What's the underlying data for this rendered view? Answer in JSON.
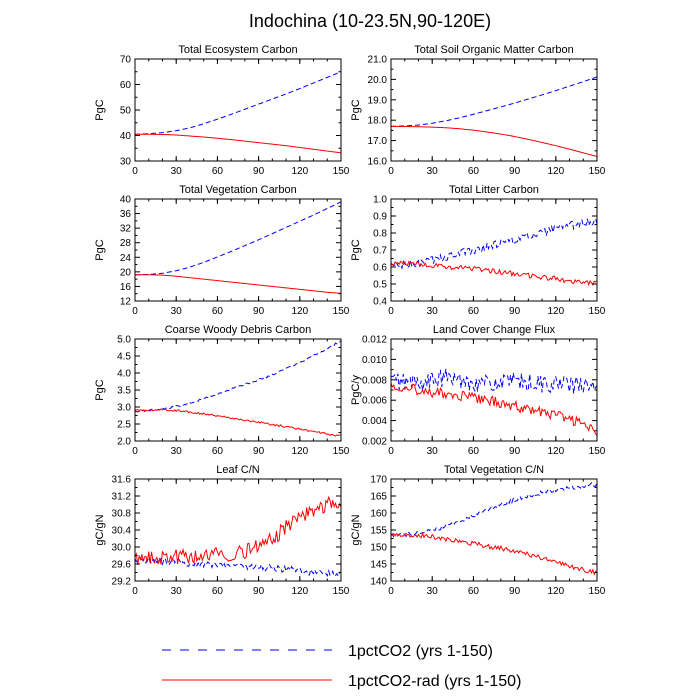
{
  "title": "Indochina (10-23.5N,90-120E)",
  "legend": [
    {
      "label": "1pctCO2 (yrs 1-150)",
      "color": "#0000ff",
      "dash": "dashed"
    },
    {
      "label": "1pctCO2-rad (yrs 1-150)",
      "color": "#ff0000",
      "dash": "solid"
    }
  ],
  "chart_data": [
    {
      "type": "line",
      "title": "Total Ecosystem Carbon",
      "ylabel": "PgC",
      "xlim": [
        0,
        150
      ],
      "ylim": [
        30,
        70
      ],
      "xticks": [
        0,
        30,
        60,
        90,
        120,
        150
      ],
      "yticks": [
        30,
        40,
        50,
        60,
        70
      ],
      "yticklabels": [
        "30",
        "40",
        "50",
        "60",
        "70"
      ],
      "series": [
        {
          "name": "1pctCO2 (yrs 1-150)",
          "x": [
            0,
            10,
            20,
            30,
            40,
            50,
            60,
            70,
            80,
            90,
            100,
            110,
            120,
            130,
            140,
            150
          ],
          "y": [
            40.5,
            40.7,
            41.1,
            41.9,
            43.0,
            44.6,
            46.4,
            48.3,
            50.3,
            52.3,
            54.3,
            56.3,
            58.4,
            60.6,
            62.8,
            65.0
          ],
          "noise": 0
        },
        {
          "name": "1pctCO2-rad (yrs 1-150)",
          "x": [
            0,
            10,
            20,
            30,
            40,
            50,
            60,
            70,
            80,
            90,
            100,
            110,
            120,
            130,
            140,
            150
          ],
          "y": [
            40.5,
            40.5,
            40.4,
            40.2,
            39.8,
            39.4,
            38.9,
            38.4,
            37.8,
            37.2,
            36.6,
            36.0,
            35.3,
            34.6,
            33.9,
            33.2
          ],
          "noise": 0
        }
      ]
    },
    {
      "type": "line",
      "title": "Total Soil Organic Matter Carbon",
      "ylabel": "PgC",
      "xlim": [
        0,
        150
      ],
      "ylim": [
        16,
        21
      ],
      "xticks": [
        0,
        30,
        60,
        90,
        120,
        150
      ],
      "yticks": [
        16,
        17,
        18,
        19,
        20,
        21
      ],
      "yticklabels": [
        "16.0",
        "17.0",
        "18.0",
        "19.0",
        "20.0",
        "21.0"
      ],
      "series": [
        {
          "name": "1pctCO2 (yrs 1-150)",
          "x": [
            0,
            10,
            20,
            30,
            40,
            50,
            60,
            70,
            80,
            90,
            100,
            110,
            120,
            130,
            140,
            150
          ],
          "y": [
            17.7,
            17.72,
            17.76,
            17.85,
            17.97,
            18.12,
            18.29,
            18.47,
            18.65,
            18.84,
            19.04,
            19.24,
            19.45,
            19.67,
            19.89,
            20.12
          ],
          "noise": 0
        },
        {
          "name": "1pctCO2-rad (yrs 1-150)",
          "x": [
            0,
            10,
            20,
            30,
            40,
            50,
            60,
            70,
            80,
            90,
            100,
            110,
            120,
            130,
            140,
            150
          ],
          "y": [
            17.7,
            17.69,
            17.68,
            17.66,
            17.63,
            17.58,
            17.51,
            17.42,
            17.32,
            17.2,
            17.06,
            16.91,
            16.75,
            16.58,
            16.4,
            16.22
          ],
          "noise": 0
        }
      ]
    },
    {
      "type": "line",
      "title": "Total Vegetation Carbon",
      "ylabel": "PgC",
      "xlim": [
        0,
        150
      ],
      "ylim": [
        12,
        40
      ],
      "xticks": [
        0,
        30,
        60,
        90,
        120,
        150
      ],
      "yticks": [
        12,
        16,
        20,
        24,
        28,
        32,
        36,
        40
      ],
      "yticklabels": [
        "12",
        "16",
        "20",
        "24",
        "28",
        "32",
        "36",
        "40"
      ],
      "series": [
        {
          "name": "1pctCO2 (yrs 1-150)",
          "x": [
            0,
            10,
            20,
            30,
            40,
            50,
            60,
            70,
            80,
            90,
            100,
            110,
            120,
            130,
            140,
            150
          ],
          "y": [
            19.2,
            19.3,
            19.6,
            20.3,
            21.3,
            22.6,
            24.1,
            25.6,
            27.2,
            28.8,
            30.5,
            32.2,
            33.9,
            35.6,
            37.4,
            39.2
          ],
          "noise": 0
        },
        {
          "name": "1pctCO2-rad (yrs 1-150)",
          "x": [
            0,
            10,
            20,
            30,
            40,
            50,
            60,
            70,
            80,
            90,
            100,
            110,
            120,
            130,
            140,
            150
          ],
          "y": [
            19.2,
            19.2,
            19.1,
            18.8,
            18.4,
            18.0,
            17.6,
            17.2,
            16.8,
            16.4,
            16.0,
            15.6,
            15.2,
            14.8,
            14.4,
            14.1
          ],
          "noise": 0
        }
      ]
    },
    {
      "type": "line",
      "title": "Total Litter Carbon",
      "ylabel": "PgC",
      "xlim": [
        0,
        150
      ],
      "ylim": [
        0.4,
        1.0
      ],
      "xticks": [
        0,
        30,
        60,
        90,
        120,
        150
      ],
      "yticks": [
        0.4,
        0.5,
        0.6,
        0.7,
        0.8,
        0.9,
        1.0
      ],
      "yticklabels": [
        "0.4",
        "0.5",
        "0.6",
        "0.7",
        "0.8",
        "0.9",
        "1.0"
      ],
      "series": [
        {
          "name": "1pctCO2 (yrs 1-150)",
          "x": [
            0,
            10,
            20,
            30,
            40,
            50,
            60,
            70,
            80,
            90,
            100,
            110,
            120,
            130,
            140,
            150
          ],
          "y": [
            0.61,
            0.61,
            0.62,
            0.64,
            0.66,
            0.68,
            0.7,
            0.72,
            0.74,
            0.76,
            0.78,
            0.8,
            0.82,
            0.84,
            0.86,
            0.86
          ],
          "noise": 0.025
        },
        {
          "name": "1pctCO2-rad (yrs 1-150)",
          "x": [
            0,
            10,
            20,
            30,
            40,
            50,
            60,
            70,
            80,
            90,
            100,
            110,
            120,
            130,
            140,
            150
          ],
          "y": [
            0.62,
            0.62,
            0.62,
            0.61,
            0.6,
            0.6,
            0.59,
            0.58,
            0.57,
            0.56,
            0.55,
            0.54,
            0.53,
            0.52,
            0.51,
            0.51
          ],
          "noise": 0.015
        }
      ]
    },
    {
      "type": "line",
      "title": "Coarse Woody Debris Carbon",
      "ylabel": "PgC",
      "xlim": [
        0,
        150
      ],
      "ylim": [
        2.0,
        5.0
      ],
      "xticks": [
        0,
        30,
        60,
        90,
        120,
        150
      ],
      "yticks": [
        2.0,
        2.5,
        3.0,
        3.5,
        4.0,
        4.5,
        5.0
      ],
      "yticklabels": [
        "2.0",
        "2.5",
        "3.0",
        "3.5",
        "4.0",
        "4.5",
        "5.0"
      ],
      "series": [
        {
          "name": "1pctCO2 (yrs 1-150)",
          "x": [
            0,
            10,
            20,
            30,
            40,
            50,
            60,
            70,
            80,
            90,
            100,
            110,
            120,
            130,
            140,
            150
          ],
          "y": [
            2.88,
            2.9,
            2.94,
            3.02,
            3.12,
            3.25,
            3.38,
            3.52,
            3.66,
            3.8,
            3.95,
            4.12,
            4.3,
            4.5,
            4.72,
            4.95
          ],
          "noise": 0.03
        },
        {
          "name": "1pctCO2-rad (yrs 1-150)",
          "x": [
            0,
            10,
            20,
            30,
            40,
            50,
            60,
            70,
            80,
            90,
            100,
            110,
            120,
            130,
            140,
            150
          ],
          "y": [
            2.9,
            2.9,
            2.92,
            2.9,
            2.85,
            2.8,
            2.74,
            2.68,
            2.62,
            2.55,
            2.48,
            2.42,
            2.35,
            2.28,
            2.2,
            2.15
          ],
          "noise": 0.03
        }
      ]
    },
    {
      "type": "line",
      "title": "Land Cover Change Flux",
      "ylabel": "PgC/y",
      "xlim": [
        0,
        150
      ],
      "ylim": [
        0.002,
        0.012
      ],
      "xticks": [
        0,
        30,
        60,
        90,
        120,
        150
      ],
      "yticks": [
        0.002,
        0.004,
        0.006,
        0.008,
        0.01,
        0.012
      ],
      "yticklabels": [
        "0.002",
        "0.004",
        "0.006",
        "0.008",
        "0.010",
        "0.012"
      ],
      "series": [
        {
          "name": "1pctCO2 (yrs 1-150)",
          "x": [
            0,
            10,
            20,
            30,
            40,
            50,
            60,
            70,
            80,
            90,
            100,
            110,
            120,
            130,
            140,
            150
          ],
          "y": [
            0.008,
            0.0078,
            0.0077,
            0.0079,
            0.0082,
            0.008,
            0.0078,
            0.0076,
            0.0077,
            0.0078,
            0.0077,
            0.0076,
            0.0076,
            0.0075,
            0.0074,
            0.0072
          ],
          "noise": 0.0009
        },
        {
          "name": "1pctCO2-rad (yrs 1-150)",
          "x": [
            0,
            10,
            20,
            30,
            40,
            50,
            60,
            70,
            80,
            90,
            100,
            110,
            120,
            130,
            140,
            150
          ],
          "y": [
            0.0075,
            0.0073,
            0.007,
            0.0068,
            0.0066,
            0.0064,
            0.0062,
            0.006,
            0.0057,
            0.0054,
            0.0051,
            0.0048,
            0.0045,
            0.0041,
            0.0036,
            0.003
          ],
          "noise": 0.0005
        }
      ]
    },
    {
      "type": "line",
      "title": "Leaf C/N",
      "ylabel": "gC/gN",
      "xlim": [
        0,
        150
      ],
      "ylim": [
        29.2,
        31.6
      ],
      "xticks": [
        0,
        30,
        60,
        90,
        120,
        150
      ],
      "yticks": [
        29.2,
        29.6,
        30.0,
        30.4,
        30.8,
        31.2,
        31.6
      ],
      "yticklabels": [
        "29.2",
        "29.6",
        "30.0",
        "30.4",
        "30.8",
        "31.2",
        "31.6"
      ],
      "series": [
        {
          "name": "1pctCO2 (yrs 1-150)",
          "x": [
            0,
            10,
            20,
            30,
            40,
            50,
            60,
            70,
            80,
            90,
            100,
            110,
            120,
            130,
            140,
            150
          ],
          "y": [
            29.7,
            29.68,
            29.66,
            29.64,
            29.62,
            29.6,
            29.59,
            29.57,
            29.55,
            29.52,
            29.5,
            29.47,
            29.44,
            29.41,
            29.38,
            29.36
          ],
          "noise": 0.08
        },
        {
          "name": "1pctCO2-rad (yrs 1-150)",
          "x": [
            0,
            10,
            20,
            30,
            40,
            50,
            60,
            70,
            80,
            90,
            100,
            110,
            120,
            130,
            140,
            150
          ],
          "y": [
            29.7,
            29.72,
            29.74,
            29.76,
            29.78,
            29.8,
            29.82,
            29.85,
            29.9,
            30.0,
            30.2,
            30.45,
            30.7,
            30.9,
            31.0,
            31.05
          ],
          "noise": 0.18
        }
      ]
    },
    {
      "type": "line",
      "title": "Total Vegetation C/N",
      "ylabel": "gC/gN",
      "xlim": [
        0,
        150
      ],
      "ylim": [
        140,
        170
      ],
      "xticks": [
        0,
        30,
        60,
        90,
        120,
        150
      ],
      "yticks": [
        140,
        145,
        150,
        155,
        160,
        165,
        170
      ],
      "yticklabels": [
        "140",
        "145",
        "150",
        "155",
        "160",
        "165",
        "170"
      ],
      "series": [
        {
          "name": "1pctCO2 (yrs 1-150)",
          "x": [
            0,
            10,
            20,
            30,
            40,
            50,
            60,
            70,
            80,
            90,
            100,
            110,
            120,
            130,
            140,
            150
          ],
          "y": [
            153.5,
            153.6,
            154.0,
            154.8,
            156.0,
            157.6,
            159.3,
            160.9,
            162.4,
            163.8,
            165.0,
            166.0,
            166.8,
            167.4,
            168.0,
            168.5
          ],
          "noise": 0.6
        },
        {
          "name": "1pctCO2-rad (yrs 1-150)",
          "x": [
            0,
            10,
            20,
            30,
            40,
            50,
            60,
            70,
            80,
            90,
            100,
            110,
            120,
            130,
            140,
            150
          ],
          "y": [
            153.5,
            153.5,
            153.4,
            153.0,
            152.4,
            151.7,
            151.0,
            150.3,
            149.6,
            148.8,
            147.8,
            146.7,
            145.5,
            144.4,
            143.3,
            142.5
          ],
          "noise": 0.7
        }
      ]
    }
  ]
}
